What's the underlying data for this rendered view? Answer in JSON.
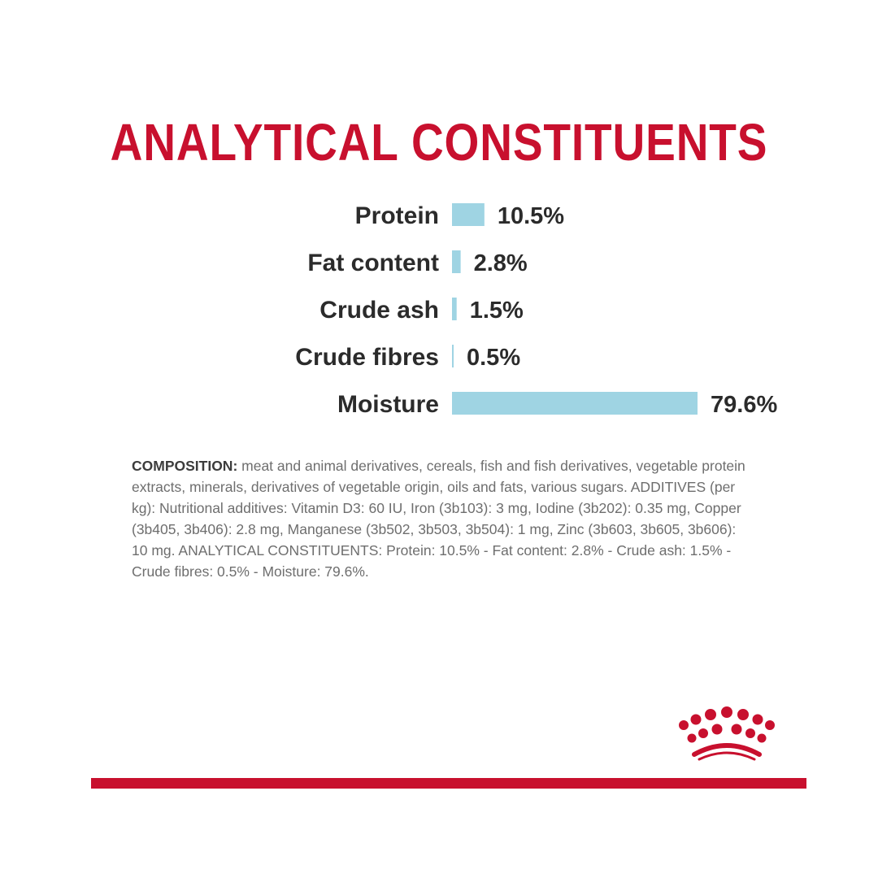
{
  "title": "ANALYTICAL CONSTITUENTS",
  "colors": {
    "brand_red": "#c8102e",
    "bar_blue": "#9fd4e3",
    "label_dark": "#2b2b2b",
    "text_gray": "#6e6e6e"
  },
  "chart_data": {
    "type": "bar",
    "orientation": "horizontal",
    "title": "ANALYTICAL CONSTITUENTS",
    "categories": [
      "Protein",
      "Fat content",
      "Crude ash",
      "Crude fibres",
      "Moisture"
    ],
    "values": [
      10.5,
      2.8,
      1.5,
      0.5,
      79.6
    ],
    "value_labels": [
      "10.5%",
      "2.8%",
      "1.5%",
      "0.5%",
      "79.6%"
    ],
    "unit": "%",
    "xlim": [
      0,
      79.6
    ],
    "grid": false,
    "legend": "none"
  },
  "composition": {
    "lead": "COMPOSITION:",
    "text": " meat and animal derivatives, cereals, fish and fish derivatives, vegetable protein extracts, minerals, derivatives of vegetable origin, oils and fats, various sugars. ADDITIVES (per kg): Nutritional additives: Vitamin D3: 60 IU, Iron (3b103): 3 mg, Iodine (3b202): 0.35 mg, Copper (3b405, 3b406): 2.8 mg, Manganese (3b502, 3b503, 3b504): 1 mg, Zinc (3b603, 3b605, 3b606): 10 mg. ANALYTICAL CONSTITUENTS: Protein: 10.5% - Fat content: 2.8% - Crude ash: 1.5% - Crude fibres: 0.5% - Moisture: 79.6%."
  },
  "brand": {
    "logo_icon": "royal-canin-crown-icon"
  }
}
